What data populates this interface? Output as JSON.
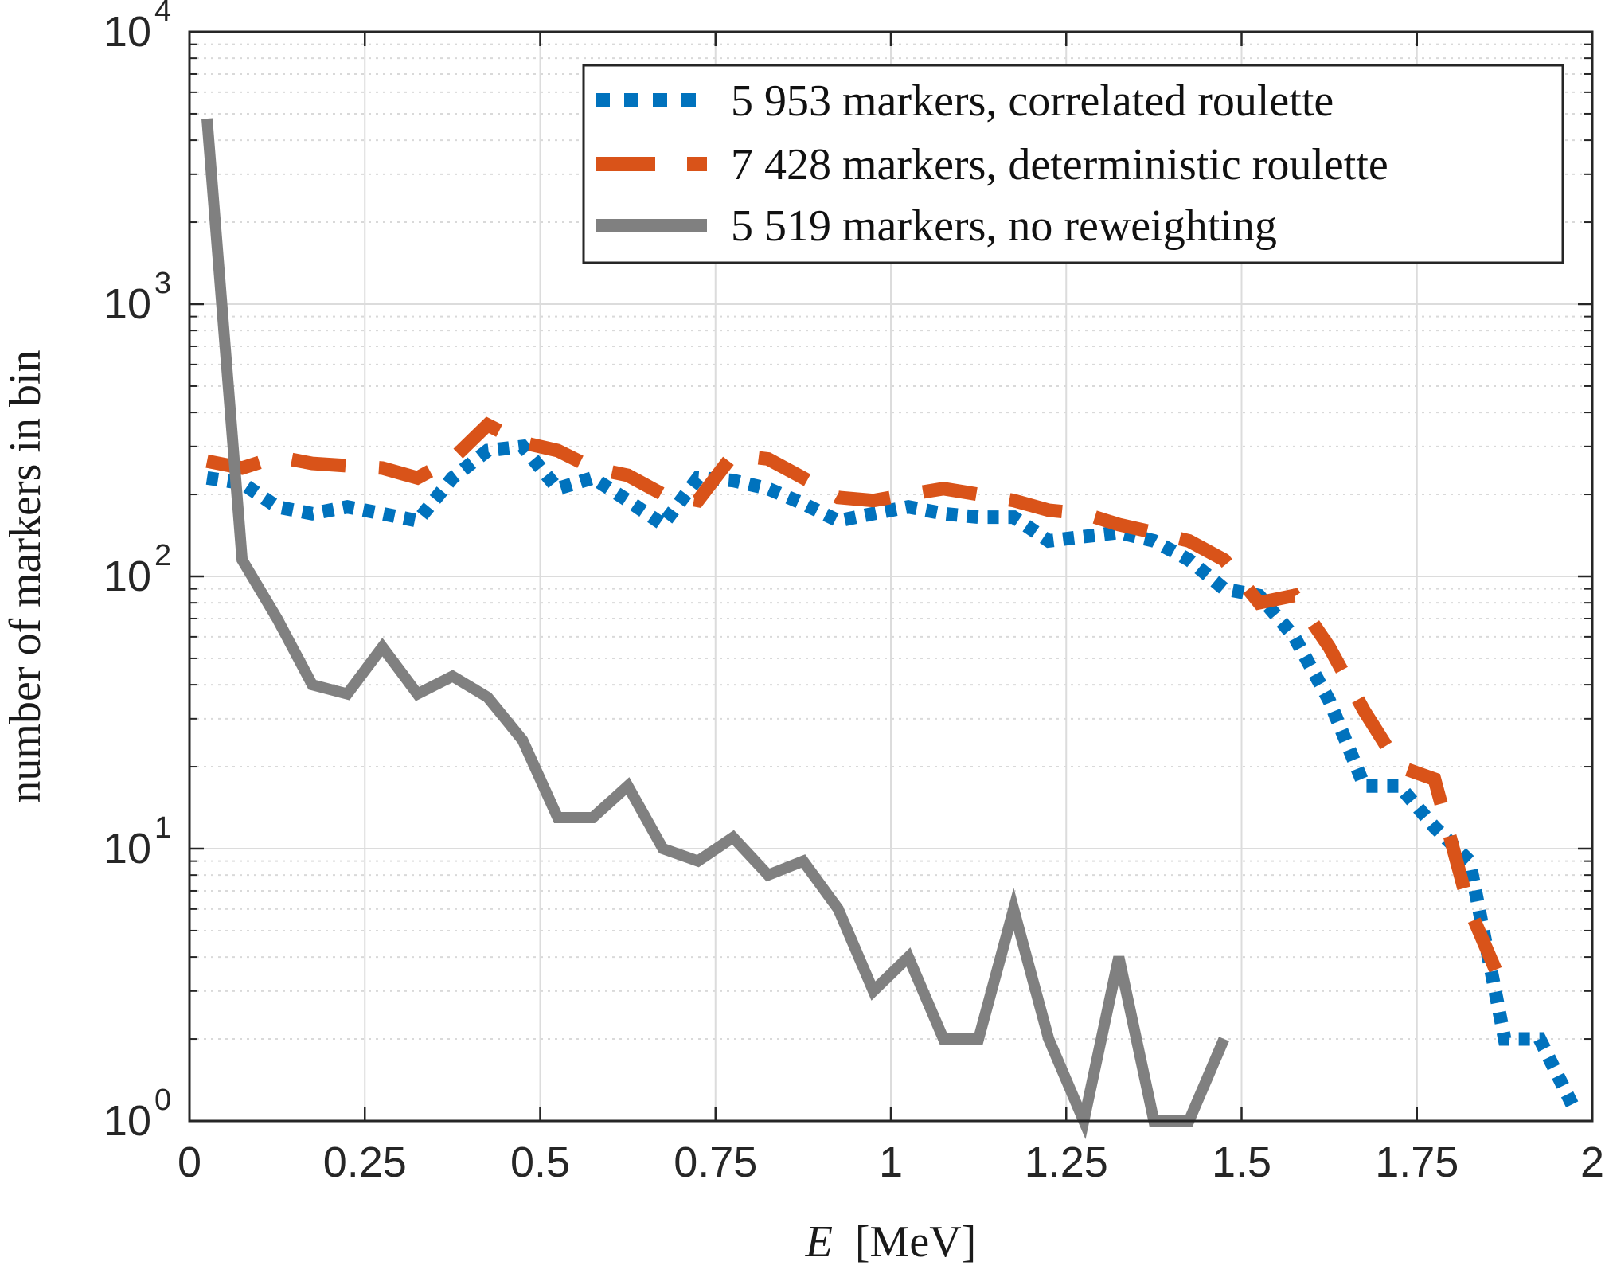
{
  "chart_data": {
    "type": "line",
    "xlabel_var": "E",
    "xlabel_unit": "[MeV]",
    "ylabel": "number of markers in bin",
    "xlim": [
      0,
      2
    ],
    "ylim": [
      1,
      10000
    ],
    "yscale": "log",
    "grid": true,
    "minor_grid_y": true,
    "legend_position": "top-right",
    "x_ticks": [
      "0",
      "0.25",
      "0.5",
      "0.75",
      "1",
      "1.25",
      "1.5",
      "1.75",
      "2"
    ],
    "y_ticks": [
      {
        "base": "10",
        "exp": "0"
      },
      {
        "base": "10",
        "exp": "1"
      },
      {
        "base": "10",
        "exp": "2"
      },
      {
        "base": "10",
        "exp": "3"
      },
      {
        "base": "10",
        "exp": "4"
      }
    ],
    "series": [
      {
        "name": "5 953 markers, correlated roulette",
        "color": "#0072BD",
        "style": "dotted",
        "x": [
          0.025,
          0.075,
          0.125,
          0.175,
          0.225,
          0.275,
          0.325,
          0.375,
          0.425,
          0.475,
          0.525,
          0.575,
          0.625,
          0.675,
          0.725,
          0.775,
          0.825,
          0.875,
          0.925,
          0.975,
          1.025,
          1.075,
          1.125,
          1.175,
          1.225,
          1.275,
          1.325,
          1.375,
          1.425,
          1.475,
          1.525,
          1.575,
          1.625,
          1.675,
          1.725,
          1.775,
          1.825,
          1.875,
          1.925,
          1.975
        ],
        "y": [
          230,
          220,
          180,
          170,
          180,
          170,
          160,
          230,
          290,
          300,
          210,
          230,
          190,
          155,
          230,
          225,
          210,
          185,
          160,
          170,
          180,
          170,
          165,
          165,
          135,
          140,
          145,
          135,
          115,
          90,
          85,
          60,
          35,
          17,
          17,
          12,
          9,
          2,
          2,
          1.1
        ]
      },
      {
        "name": "7 428 markers, deterministic roulette",
        "color": "#D95319",
        "style": "dashed",
        "x": [
          0.025,
          0.075,
          0.125,
          0.175,
          0.225,
          0.275,
          0.325,
          0.375,
          0.425,
          0.475,
          0.525,
          0.575,
          0.625,
          0.675,
          0.725,
          0.775,
          0.825,
          0.875,
          0.925,
          0.975,
          1.025,
          1.075,
          1.125,
          1.175,
          1.225,
          1.275,
          1.325,
          1.375,
          1.425,
          1.475,
          1.525,
          1.575,
          1.625,
          1.675,
          1.725,
          1.775,
          1.825,
          1.875
        ],
        "y": [
          265,
          250,
          275,
          260,
          255,
          250,
          230,
          270,
          360,
          310,
          290,
          250,
          235,
          200,
          190,
          280,
          270,
          230,
          195,
          190,
          200,
          210,
          200,
          190,
          175,
          170,
          155,
          145,
          135,
          115,
          80,
          85,
          55,
          32,
          20,
          18,
          6,
          3
        ]
      },
      {
        "name": "5 519 markers, no reweighting",
        "color": "#808080",
        "style": "solid",
        "x": [
          0.025,
          0.075,
          0.125,
          0.175,
          0.225,
          0.275,
          0.325,
          0.375,
          0.425,
          0.475,
          0.525,
          0.575,
          0.625,
          0.675,
          0.725,
          0.775,
          0.825,
          0.875,
          0.925,
          0.975,
          1.025,
          1.075,
          1.125,
          1.175,
          1.225,
          1.275,
          1.325,
          1.375,
          1.425,
          1.475
        ],
        "y": [
          4800,
          115,
          70,
          40,
          37,
          55,
          37,
          43,
          36,
          25,
          13,
          13,
          17,
          10,
          9,
          11,
          8,
          9,
          6,
          3,
          4,
          2,
          2,
          6,
          2,
          1,
          4,
          1,
          1,
          2
        ]
      }
    ]
  }
}
